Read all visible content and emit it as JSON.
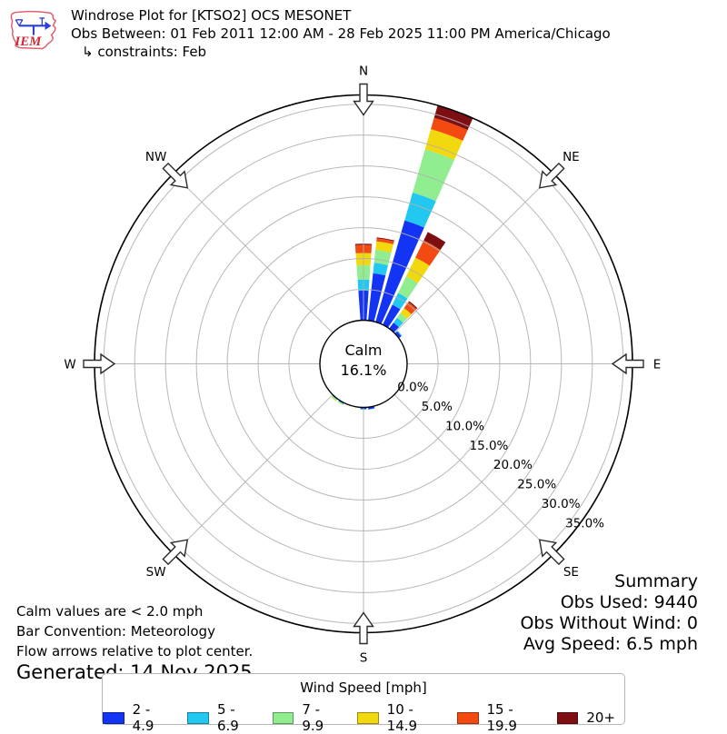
{
  "header": {
    "logo_text": "IEM",
    "title": "Windrose Plot for [KTSO2] OCS MESONET",
    "subtitle": "Obs Between: 01 Feb 2011 12:00 AM - 28 Feb 2025 11:00 PM America/Chicago",
    "constraints": "↳ constraints: Feb"
  },
  "rose": {
    "calm_label": "Calm",
    "calm_value": "16.1%",
    "compass_labels": [
      "N",
      "NE",
      "E",
      "SE",
      "S",
      "SW",
      "W",
      "NW"
    ],
    "tick_labels": [
      "0.0%",
      "5.0%",
      "10.0%",
      "15.0%",
      "20.0%",
      "25.0%",
      "30.0%",
      "35.0%"
    ]
  },
  "summary": {
    "title": "Summary",
    "obs_used": "Obs Used: 9440",
    "obs_without_wind": "Obs Without Wind: 0",
    "avg_speed": "Avg Speed: 6.5 mph"
  },
  "footnotes": {
    "line1": "Calm values are < 2.0 mph",
    "line2": "Bar Convention: Meteorology",
    "line3": "Flow arrows relative to plot center.",
    "generated": "Generated: 14 Nov 2025"
  },
  "legend": {
    "title": "Wind Speed [mph]",
    "items": [
      {
        "label": "2 - 4.9",
        "color": "#1434f4"
      },
      {
        "label": "5 - 6.9",
        "color": "#22c8f0"
      },
      {
        "label": "7 - 9.9",
        "color": "#90ee90"
      },
      {
        "label": "10 - 14.9",
        "color": "#f2d80e"
      },
      {
        "label": "15 - 19.9",
        "color": "#f24a10"
      },
      {
        "label": "20+",
        "color": "#7d0f12"
      }
    ]
  },
  "chart_data": {
    "type": "windrose",
    "units": "mph",
    "direction_convention": "meteorology (bars point toward direction wind blows from)",
    "calm_percent": 16.1,
    "calm_threshold_mph": 2.0,
    "sector_width_deg": 10,
    "speed_bins": [
      "2 - 4.9",
      "5 - 6.9",
      "7 - 9.9",
      "10 - 14.9",
      "15 - 19.9",
      "20+"
    ],
    "colors": [
      "#1434f4",
      "#22c8f0",
      "#90ee90",
      "#f2d80e",
      "#f24a10",
      "#7d0f12"
    ],
    "r_axis": {
      "ticks_percent": [
        0,
        5,
        10,
        15,
        20,
        25,
        30,
        35
      ],
      "max_percent": 36.5,
      "grid": true,
      "tick_label_bearing_deg": 129
    },
    "directions": [
      {
        "deg": 0,
        "values": [
          4.8,
          1.8,
          2.3,
          2.0,
          1.3,
          0.2
        ]
      },
      {
        "deg": 10,
        "values": [
          7.7,
          1.7,
          2.1,
          1.4,
          0.5,
          0.15
        ]
      },
      {
        "deg": 20,
        "values": [
          17.1,
          4.7,
          7.3,
          3.4,
          1.9,
          2.1
        ]
      },
      {
        "deg": 30,
        "values": [
          3.6,
          2.1,
          3.0,
          3.4,
          3.1,
          1.5
        ]
      },
      {
        "deg": 40,
        "values": [
          1.2,
          1.0,
          0.9,
          1.0,
          1.2,
          0.2
        ]
      },
      {
        "deg": 50,
        "values": [
          0.5,
          0.15,
          0,
          0,
          0,
          0
        ]
      },
      {
        "deg": 170,
        "values": [
          0.35,
          0.05,
          0,
          0,
          0,
          0
        ]
      },
      {
        "deg": 180,
        "values": [
          0.25,
          0.1,
          0,
          0,
          0,
          0
        ]
      },
      {
        "deg": 210,
        "values": [
          0.15,
          0.1,
          0.1,
          0.05,
          0,
          0
        ]
      },
      {
        "deg": 220,
        "values": [
          0.1,
          0.1,
          0.15,
          0.1,
          0,
          0
        ]
      }
    ]
  }
}
